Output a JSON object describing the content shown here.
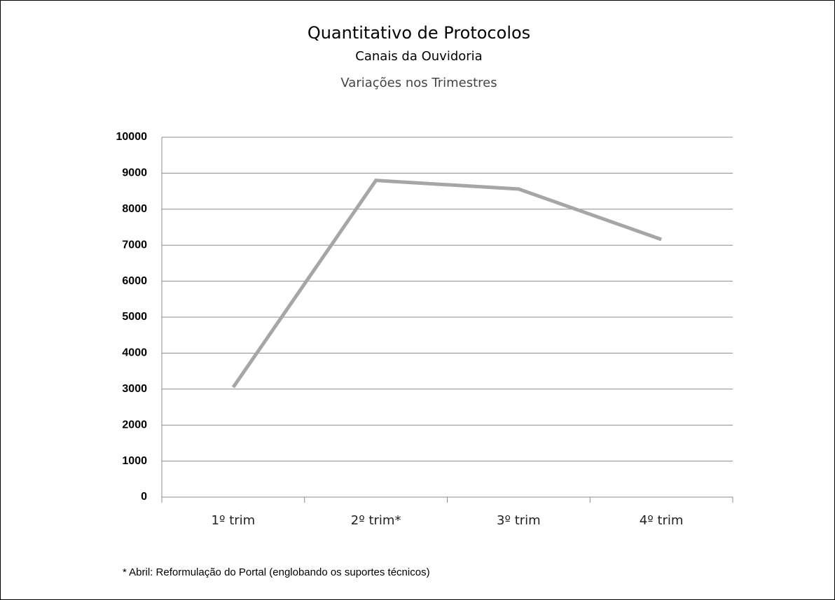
{
  "chart_data": {
    "type": "line",
    "title": "Quantitativo de Protocolos",
    "subtitle": "Canais da Ouvidoria",
    "subtitle2": "Variações nos Trimestres",
    "footnote": "* Abril: Reformulação do Portal (englobando os suportes técnicos)",
    "categories": [
      "1º trim",
      "2º trim*",
      "3º trim",
      "4º trim"
    ],
    "series": [
      {
        "color": "#a6a6a6",
        "values": [
          3050,
          8800,
          8560,
          7160
        ]
      }
    ],
    "ylim": [
      0,
      10000
    ],
    "yticks": [
      0,
      1000,
      2000,
      3000,
      4000,
      5000,
      6000,
      7000,
      8000,
      9000,
      10000
    ],
    "grid": true
  }
}
